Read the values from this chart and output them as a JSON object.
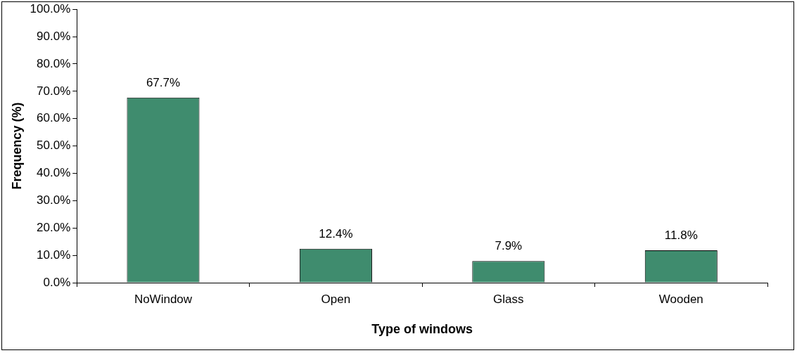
{
  "chart_data": {
    "type": "bar",
    "xlabel": "Type of windows",
    "ylabel": "Frequency (%)",
    "categories": [
      "NoWindow",
      "Open",
      "Glass",
      "Wooden"
    ],
    "values": [
      67.7,
      12.4,
      7.9,
      11.8
    ],
    "value_labels": [
      "67.7%",
      "12.4%",
      "7.9%",
      "11.8%"
    ],
    "color": "#3f8c6e",
    "ylim": [
      0,
      100
    ],
    "yticks": [
      {
        "value": 0,
        "label": "0.0%"
      },
      {
        "value": 10,
        "label": "10.0%"
      },
      {
        "value": 20,
        "label": "20.0%"
      },
      {
        "value": 30,
        "label": "30.0%"
      },
      {
        "value": 40,
        "label": "40.0%"
      },
      {
        "value": 50,
        "label": "50.0%"
      },
      {
        "value": 60,
        "label": "60.0%"
      },
      {
        "value": 70,
        "label": "70.0%"
      },
      {
        "value": 80,
        "label": "80.0%"
      },
      {
        "value": 90,
        "label": "90.0%"
      },
      {
        "value": 100,
        "label": "100.0%"
      }
    ],
    "grid": false,
    "legend": false
  }
}
